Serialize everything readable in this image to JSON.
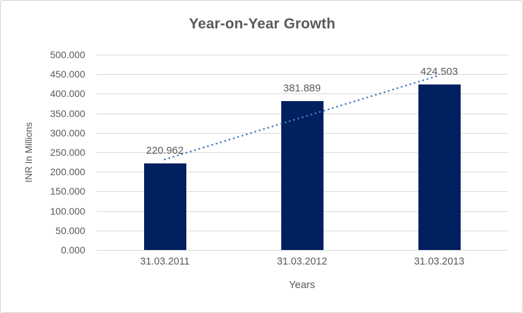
{
  "chart_data": {
    "type": "bar",
    "title": "Year-on-Year Growth",
    "categories": [
      "31.03.2011",
      "31.03.2012",
      "31.03.2013"
    ],
    "values": [
      220.962,
      381.889,
      424.503
    ],
    "value_labels": [
      "220.962",
      "381.889",
      "424.503"
    ],
    "xlabel": "Years",
    "ylabel": "INR In Millions",
    "ylim": [
      0,
      500
    ],
    "ytick_step": 50,
    "ytick_labels": [
      "500.000",
      "450.000",
      "400.000",
      "350.000",
      "300.000",
      "250.000",
      "200.000",
      "150.000",
      "100.000",
      "50.000",
      "0.000"
    ],
    "grid": true,
    "legend": "none",
    "trendline": {
      "style": "dotted",
      "start": {
        "cat": 0,
        "value": 232
      },
      "end": {
        "cat": 2,
        "value": 447
      }
    }
  },
  "colors": {
    "bar": "#002060",
    "trendline": "#4a7ebe",
    "gridline": "#d9d9d9",
    "axis_line": "#d9d9d9",
    "text": "#595959",
    "border": "#d3d3d3",
    "background": "#ffffff"
  }
}
